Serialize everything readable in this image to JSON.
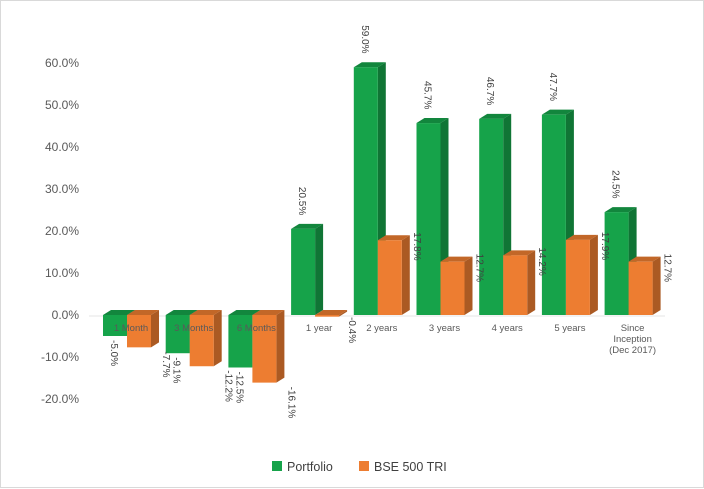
{
  "chart_data": {
    "type": "bar",
    "title": "",
    "xlabel": "",
    "ylabel": "",
    "ylim": [
      -0.2,
      0.6
    ],
    "y_ticks": [
      "60.0%",
      "50.0%",
      "40.0%",
      "30.0%",
      "20.0%",
      "10.0%",
      "0.0%",
      "-10.0%",
      "-20.0%"
    ],
    "categories": [
      [
        "1 Month"
      ],
      [
        "3 Months"
      ],
      [
        "6 Months"
      ],
      [
        "1 year"
      ],
      [
        "2 years"
      ],
      [
        "3 years"
      ],
      [
        "4 years"
      ],
      [
        "5 years"
      ],
      [
        "Since",
        "Inception",
        "(Dec 2017)"
      ]
    ],
    "series": [
      {
        "name": "Portfolio",
        "color": "#16a34a",
        "values": [
          -0.05,
          -0.091,
          -0.125,
          0.205,
          0.59,
          0.457,
          0.467,
          0.477,
          0.245
        ],
        "labels": [
          "-5.0%",
          "-9.1%",
          "-12.5%",
          "20.5%",
          "59.0%",
          "45.7%",
          "46.7%",
          "47.7%",
          "24.5%"
        ]
      },
      {
        "name": "BSE 500 TRI",
        "color": "#ed7d31",
        "values": [
          -0.077,
          -0.122,
          -0.161,
          -0.004,
          0.178,
          0.127,
          0.142,
          0.179,
          0.127
        ],
        "labels": [
          "-7.7%",
          "-12.2%",
          "-16.1%",
          "-0.4%",
          "17.8%",
          "12.7%",
          "14.2%",
          "17.9%",
          "12.7%"
        ]
      }
    ],
    "grid": false,
    "legend_position": "bottom"
  }
}
